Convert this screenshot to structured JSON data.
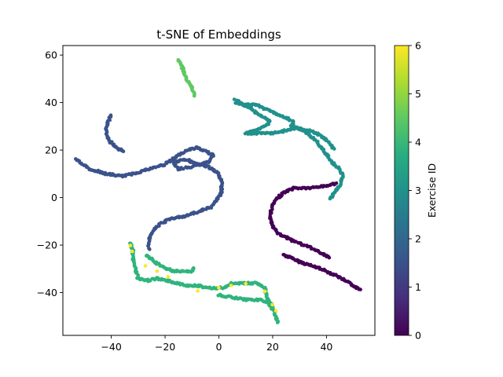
{
  "chart_data": {
    "type": "scatter",
    "title": "t-SNE of Embeddings",
    "xlabel": "",
    "ylabel": "",
    "xlim": [
      -58,
      58
    ],
    "ylim": [
      -58,
      64
    ],
    "xticks": [
      -40,
      -20,
      0,
      20,
      40
    ],
    "yticks": [
      -40,
      -20,
      0,
      20,
      40,
      60
    ],
    "grid": false,
    "colorbar": {
      "label": "Exercise ID",
      "min": 0,
      "max": 6,
      "ticks": [
        0,
        1,
        2,
        3,
        4,
        5,
        6
      ],
      "colormap": "viridis"
    },
    "clusters": [
      {
        "exercise_id": 0,
        "color": "#440154",
        "path": [
          [
            24,
            -24
          ],
          [
            30,
            -27
          ],
          [
            38,
            -30
          ],
          [
            44,
            -33
          ],
          [
            50,
            -37
          ],
          [
            53,
            -39
          ]
        ]
      },
      {
        "exercise_id": 0,
        "color": "#440154",
        "path": [
          [
            41,
            -25
          ],
          [
            34,
            -21
          ],
          [
            27,
            -18
          ],
          [
            22,
            -15
          ],
          [
            20,
            -12
          ],
          [
            19,
            -8
          ],
          [
            20,
            -3
          ],
          [
            22,
            0
          ],
          [
            24,
            2
          ],
          [
            28,
            4
          ],
          [
            34,
            4
          ],
          [
            40,
            5
          ],
          [
            44,
            6
          ]
        ]
      },
      {
        "exercise_id": 1,
        "color": "#3b528b",
        "path": [
          [
            -40,
            35
          ],
          [
            -41,
            32
          ],
          [
            -42,
            28
          ],
          [
            -41,
            24
          ],
          [
            -38,
            21
          ],
          [
            -35,
            19
          ]
        ]
      },
      {
        "exercise_id": 1,
        "color": "#3b528b",
        "path": [
          [
            -53,
            16
          ],
          [
            -48,
            12
          ],
          [
            -42,
            10
          ],
          [
            -36,
            9
          ],
          [
            -32,
            10
          ],
          [
            -26,
            12
          ],
          [
            -20,
            14
          ],
          [
            -16,
            17
          ],
          [
            -12,
            20
          ],
          [
            -8,
            21
          ],
          [
            -2,
            18
          ],
          [
            -4,
            15
          ],
          [
            -10,
            13
          ],
          [
            -15,
            12
          ],
          [
            -17,
            15
          ],
          [
            -12,
            16
          ],
          [
            -8,
            14
          ],
          [
            -4,
            13
          ],
          [
            0,
            10
          ],
          [
            1,
            6
          ],
          [
            1,
            2
          ],
          [
            -1,
            -1
          ],
          [
            -3,
            -4
          ],
          [
            -8,
            -6
          ],
          [
            -13,
            -8
          ],
          [
            -18,
            -9
          ],
          [
            -22,
            -11
          ]
        ]
      },
      {
        "exercise_id": 1,
        "color": "#3b528b",
        "path": [
          [
            -22,
            -11
          ],
          [
            -25,
            -15
          ],
          [
            -26,
            -18
          ],
          [
            -26,
            -22
          ]
        ]
      },
      {
        "exercise_id": 2,
        "color": "#21918c",
        "path": [
          [
            6,
            41
          ],
          [
            11,
            38
          ],
          [
            15,
            35
          ],
          [
            19,
            32
          ],
          [
            17,
            30
          ],
          [
            13,
            28
          ],
          [
            10,
            27
          ],
          [
            14,
            27
          ],
          [
            20,
            27
          ],
          [
            24,
            28
          ],
          [
            27,
            29
          ],
          [
            30,
            29
          ],
          [
            33,
            27
          ],
          [
            36,
            24
          ],
          [
            38,
            21
          ],
          [
            40,
            18
          ],
          [
            42,
            15
          ],
          [
            45,
            12
          ],
          [
            46,
            9
          ],
          [
            45,
            5
          ],
          [
            43,
            2
          ],
          [
            41,
            -1
          ]
        ]
      },
      {
        "exercise_id": 2,
        "color": "#21918c",
        "path": [
          [
            6,
            40
          ],
          [
            10,
            39
          ],
          [
            14,
            39
          ],
          [
            18,
            37
          ],
          [
            22,
            35
          ],
          [
            26,
            33
          ],
          [
            28,
            32
          ],
          [
            27,
            30
          ],
          [
            30,
            29
          ],
          [
            34,
            28
          ],
          [
            38,
            26
          ],
          [
            41,
            23
          ],
          [
            43,
            20
          ]
        ]
      },
      {
        "exercise_id": 3,
        "color": "#2fb47c",
        "path": [
          [
            -33,
            -19
          ],
          [
            -32,
            -22
          ],
          [
            -32,
            -26
          ],
          [
            -31,
            -30
          ],
          [
            -30,
            -34
          ],
          [
            -27,
            -35
          ],
          [
            -23,
            -34
          ],
          [
            -19,
            -35
          ],
          [
            -16,
            -36
          ],
          [
            -12,
            -37
          ],
          [
            -8,
            -37
          ],
          [
            -4,
            -38
          ],
          [
            0,
            -38
          ],
          [
            2,
            -38
          ],
          [
            5,
            -36
          ],
          [
            10,
            -36
          ],
          [
            14,
            -36
          ],
          [
            17,
            -38
          ],
          [
            18,
            -42
          ],
          [
            20,
            -46
          ],
          [
            21,
            -50
          ],
          [
            22,
            -53
          ]
        ]
      },
      {
        "exercise_id": 3,
        "color": "#2fb47c",
        "path": [
          [
            -27,
            -24
          ],
          [
            -24,
            -27
          ],
          [
            -21,
            -29
          ],
          [
            -17,
            -31
          ],
          [
            -14,
            -31
          ],
          [
            -10,
            -31
          ],
          [
            -9,
            -29
          ]
        ]
      },
      {
        "exercise_id": 3,
        "color": "#2fb47c",
        "path": [
          [
            0,
            -41
          ],
          [
            5,
            -42
          ],
          [
            10,
            -43
          ],
          [
            15,
            -43
          ],
          [
            18,
            -44
          ],
          [
            20,
            -47
          ]
        ]
      },
      {
        "exercise_id": 4,
        "color": "#5ec962",
        "path": [
          [
            -15,
            58
          ],
          [
            -14,
            56
          ],
          [
            -13,
            53
          ],
          [
            -12,
            50
          ],
          [
            -11,
            48
          ],
          [
            -10,
            46
          ],
          [
            -9,
            44
          ],
          [
            -9,
            42
          ]
        ]
      },
      {
        "exercise_id": 6,
        "color": "#fde725",
        "path": [
          [
            -33,
            -20
          ],
          [
            -31,
            -25
          ],
          [
            -27,
            -29
          ],
          [
            -23,
            -31
          ],
          [
            -19,
            -33
          ],
          [
            -14,
            -36
          ],
          [
            -10,
            -39
          ],
          [
            -6,
            -40
          ],
          [
            0,
            -38
          ],
          [
            7,
            -36
          ],
          [
            13,
            -36
          ],
          [
            16,
            -37
          ],
          [
            20,
            -45
          ],
          [
            22,
            -50
          ]
        ]
      }
    ]
  }
}
